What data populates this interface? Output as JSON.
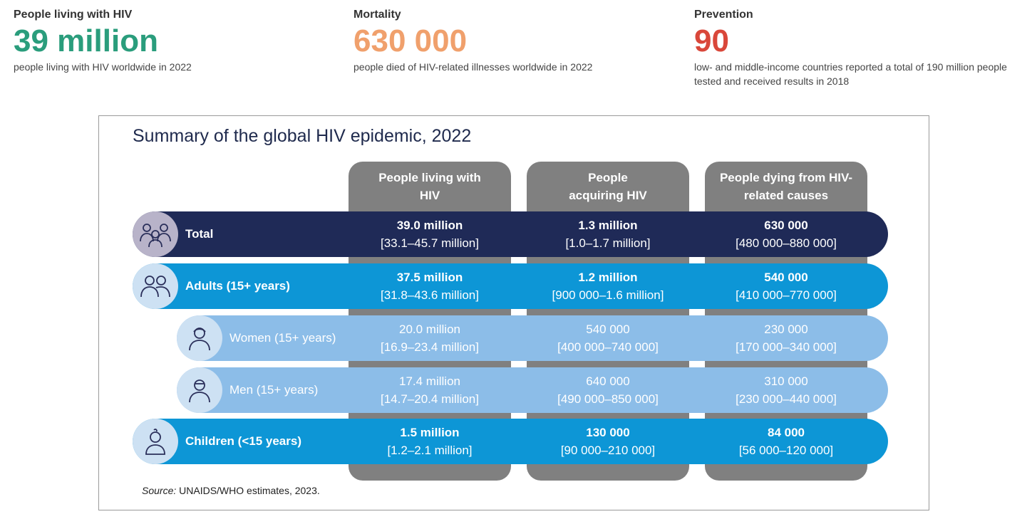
{
  "stats": [
    {
      "label": "People living with HIV",
      "value": "39 million",
      "desc": "people living with HIV worldwide in 2022"
    },
    {
      "label": "Mortality",
      "value": "630 000",
      "desc": "people died of HIV-related illnesses worldwide in 2022"
    },
    {
      "label": "Prevention",
      "value": "90",
      "desc": "low- and middle-income countries reported a total of 190 million people tested and received results in 2018"
    }
  ],
  "colors": {
    "green": "#2a9d7c",
    "orange": "#f0a06c",
    "red": "#d9473a",
    "navy": "#1f2a57",
    "blue": "#0d96d6",
    "light_blue": "#8cbde8",
    "grey": "#808080"
  },
  "chart_data": {
    "type": "table",
    "title": "Summary of the global HIV epidemic, 2022",
    "columns": [
      "People living with HIV",
      "People acquiring HIV",
      "People dying from HIV-related causes"
    ],
    "rows": [
      {
        "label": "Total",
        "icon": "group-icon",
        "cells": [
          {
            "value": "39.0 million",
            "range": "[33.1–45.7 million]"
          },
          {
            "value": "1.3 million",
            "range": "[1.0–1.7 million]"
          },
          {
            "value": "630 000",
            "range": "[480 000–880 000]"
          }
        ]
      },
      {
        "label": "Adults (15+ years)",
        "icon": "adults-icon",
        "cells": [
          {
            "value": "37.5 million",
            "range": "[31.8–43.6 million]"
          },
          {
            "value": "1.2 million",
            "range": "[900 000–1.6 million]"
          },
          {
            "value": "540 000",
            "range": "[410 000–770 000]"
          }
        ]
      },
      {
        "label": "Women (15+ years)",
        "icon": "woman-icon",
        "cells": [
          {
            "value": "20.0 million",
            "range": "[16.9–23.4 million]"
          },
          {
            "value": "540 000",
            "range": "[400 000–740 000]"
          },
          {
            "value": "230 000",
            "range": "[170 000–340 000]"
          }
        ]
      },
      {
        "label": "Men (15+ years)",
        "icon": "man-icon",
        "cells": [
          {
            "value": "17.4 million",
            "range": "[14.7–20.4 million]"
          },
          {
            "value": "640 000",
            "range": "[490 000–850 000]"
          },
          {
            "value": "310 000",
            "range": "[230 000–440 000]"
          }
        ]
      },
      {
        "label": "Children (<15 years)",
        "icon": "child-icon",
        "cells": [
          {
            "value": "1.5 million",
            "range": "[1.2–2.1 million]"
          },
          {
            "value": "130 000",
            "range": "[90 000–210 000]"
          },
          {
            "value": "84 000",
            "range": "[56 000–120 000]"
          }
        ]
      }
    ],
    "source_prefix": "Source:",
    "source_text": " UNAIDS/WHO estimates, 2023."
  }
}
